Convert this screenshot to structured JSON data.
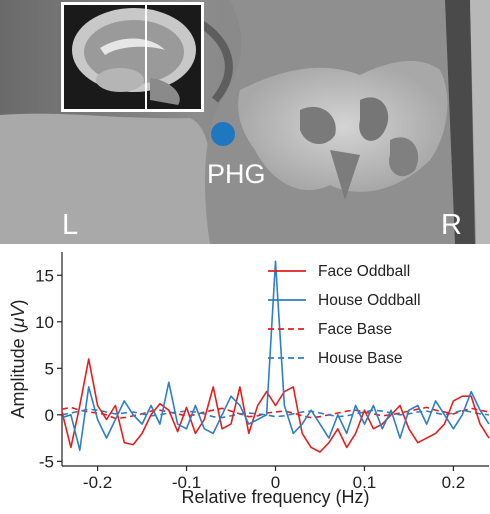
{
  "figure": {
    "mri_labels": {
      "left": "L",
      "right": "R",
      "region": "PHG"
    },
    "roi_dot_color": "#1f77c0"
  },
  "chart_data": {
    "type": "line",
    "title": "",
    "xlabel": "Relative frequency (Hz)",
    "ylabel_prefix": "Amplitude (",
    "ylabel_unit": "μV",
    "ylabel_suffix": ")",
    "xlim": [
      -0.24,
      0.24
    ],
    "ylim": [
      -5.5,
      17.5
    ],
    "x_ticks": [
      -0.2,
      -0.1,
      0,
      0.1,
      0.2
    ],
    "x_tick_labels": [
      "-0.2",
      "-0.1",
      "0",
      "0.1",
      "0.2"
    ],
    "y_ticks": [
      -5,
      0,
      5,
      10,
      15
    ],
    "y_tick_labels": [
      "-5",
      "0",
      "5",
      "10",
      "15"
    ],
    "grid": false,
    "legend_position": "top-right",
    "x": [
      -0.24,
      -0.23,
      -0.22,
      -0.21,
      -0.2,
      -0.19,
      -0.18,
      -0.17,
      -0.16,
      -0.15,
      -0.14,
      -0.13,
      -0.12,
      -0.11,
      -0.1,
      -0.09,
      -0.08,
      -0.07,
      -0.06,
      -0.05,
      -0.04,
      -0.03,
      -0.02,
      -0.01,
      0.0,
      0.01,
      0.02,
      0.03,
      0.04,
      0.05,
      0.06,
      0.07,
      0.08,
      0.09,
      0.1,
      0.11,
      0.12,
      0.13,
      0.14,
      0.15,
      0.16,
      0.17,
      0.18,
      0.19,
      0.2,
      0.21,
      0.22,
      0.23,
      0.24
    ],
    "series": [
      {
        "name": "Face Oddball",
        "color": "#e02020",
        "dash": "solid",
        "values": [
          0.3,
          -3.5,
          1.0,
          6.0,
          1.0,
          -0.5,
          1.0,
          -3.0,
          -3.2,
          -2.0,
          0.0,
          1.2,
          0.5,
          -1.8,
          0.8,
          -2.0,
          -0.5,
          3.0,
          -1.5,
          -1.0,
          3.0,
          -2.0,
          1.0,
          2.5,
          1.0,
          2.5,
          3.0,
          -2.0,
          -3.5,
          -4.0,
          -3.0,
          -1.5,
          -3.5,
          -2.0,
          0.5,
          -1.5,
          -1.0,
          0.0,
          1.0,
          -1.5,
          -3.0,
          -2.5,
          -2.0,
          -1.0,
          1.5,
          2.0,
          2.0,
          -1.0,
          -2.5
        ]
      },
      {
        "name": "House Oddball",
        "color": "#2e7fc4",
        "dash": "solid",
        "values": [
          -0.3,
          0.0,
          -3.8,
          3.0,
          -0.5,
          -2.5,
          -0.5,
          1.5,
          0.0,
          -1.0,
          1.0,
          -1.0,
          3.5,
          -1.0,
          -1.5,
          1.0,
          -1.5,
          -2.0,
          0.0,
          2.0,
          1.0,
          -1.0,
          -0.5,
          0.0,
          16.5,
          1.0,
          -2.0,
          -1.0,
          0.5,
          -1.0,
          -2.5,
          0.0,
          -2.0,
          1.0,
          -1.0,
          1.0,
          -1.5,
          0.5,
          -2.5,
          0.5,
          1.0,
          -1.0,
          1.5,
          0.0,
          -1.5,
          0.0,
          2.5,
          0.5,
          -1.0
        ]
      },
      {
        "name": "Face Base",
        "color": "#e02020",
        "dash": "dashed",
        "values": [
          0.6,
          0.8,
          0.5,
          0.3,
          0.2,
          0.0,
          -0.4,
          -0.3,
          -0.1,
          0.1,
          0.4,
          0.5,
          0.3,
          0.1,
          -0.1,
          0.0,
          0.3,
          0.5,
          0.7,
          0.4,
          0.1,
          -0.2,
          -0.1,
          0.2,
          0.3,
          0.4,
          0.2,
          -0.1,
          -0.3,
          -0.2,
          0.0,
          0.2,
          0.4,
          0.5,
          0.3,
          0.1,
          -0.1,
          0.0,
          0.2,
          0.4,
          0.6,
          0.8,
          0.5,
          0.3,
          0.1,
          0.4,
          0.7,
          0.5,
          0.3
        ]
      },
      {
        "name": "House Base",
        "color": "#2e7fc4",
        "dash": "dashed",
        "values": [
          0.0,
          0.2,
          0.4,
          0.6,
          0.5,
          0.3,
          0.1,
          0.2,
          0.3,
          0.1,
          -0.1,
          0.0,
          0.2,
          0.3,
          0.4,
          0.3,
          0.1,
          -0.2,
          -0.3,
          -0.1,
          0.1,
          0.2,
          0.1,
          0.0,
          -0.2,
          -0.1,
          0.1,
          0.3,
          0.4,
          0.2,
          0.0,
          -0.2,
          -0.1,
          0.1,
          0.3,
          0.5,
          0.4,
          0.2,
          0.0,
          0.1,
          0.3,
          0.4,
          0.2,
          0.0,
          0.2,
          0.5,
          0.3,
          0.1,
          0.0
        ]
      }
    ]
  }
}
